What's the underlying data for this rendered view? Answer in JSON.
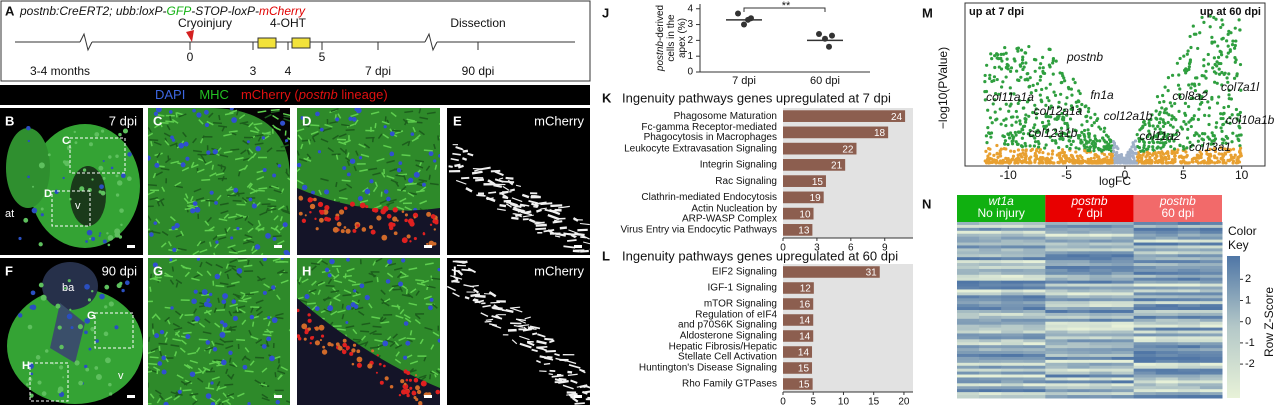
{
  "panel_a": {
    "letter": "A",
    "title": [
      "postnb:CreERT2; ubb:loxP-",
      "GFP",
      "-STOP-loxP-",
      "mCherry"
    ],
    "timeline": {
      "age": "3-4 months",
      "injury": "Cryoinjury",
      "treatment": "4-OHT",
      "end": "Dissection",
      "ticks": [
        "0",
        "3",
        "4",
        "5",
        "7 dpi",
        "90 dpi"
      ]
    }
  },
  "stain_legend": [
    "DAPI",
    "MHC",
    "mCherry (",
    "postnb",
    " lineage)"
  ],
  "micrographs": {
    "rows": [
      {
        "time": "7 dpi",
        "letters": [
          "B",
          "C",
          "D",
          "E"
        ],
        "channel": "mCherry",
        "regions": [
          "at",
          "v"
        ],
        "boxes": [
          "C",
          "D"
        ]
      },
      {
        "time": "90 dpi",
        "letters": [
          "F",
          "G",
          "H",
          "I"
        ],
        "channel": "mCherry",
        "regions": [
          "ba",
          "v"
        ],
        "boxes": [
          "G",
          "H"
        ]
      }
    ]
  },
  "panel_j": {
    "letter": "J",
    "ylabel": [
      [
        "postnb",
        "-derived"
      ],
      "cells in the",
      "apex (%)"
    ],
    "categories": [
      "7 dpi",
      "60 dpi"
    ],
    "points": [
      [
        3.7,
        3.3,
        3.0,
        3.4
      ],
      [
        2.4,
        1.6,
        2.1,
        2.3
      ]
    ],
    "means": [
      3.3,
      2.0
    ],
    "significance": "**",
    "ylim": [
      0,
      4.3
    ],
    "yticks": [
      0,
      1,
      2,
      3,
      4
    ]
  },
  "panel_k": {
    "letter": "K",
    "title": "Ingenuity pathways genes upregulated at 7 dpi",
    "categories": [
      [
        "Phagosome Maturation"
      ],
      [
        "Fc-gamma Receptor-mediated",
        "Phagocytosis in Macrophages"
      ],
      [
        "Leukocyte Extravasation Signaling"
      ],
      [
        "Integrin Signaling"
      ],
      [
        "Rac Signaling"
      ],
      [
        "Clathrin-mediated Endocytosis"
      ],
      [
        "Actin Nucleation by",
        "ARP-WASP Complex"
      ],
      [
        "Virus Entry via Endocytic Pathways"
      ]
    ],
    "values": [
      10.8,
      9.3,
      6.5,
      5.5,
      3.8,
      3.6,
      2.7,
      2.6
    ],
    "counts": [
      24,
      18,
      22,
      21,
      15,
      19,
      10,
      13
    ],
    "color": "#8c5e4f",
    "xlim": [
      0,
      11.5
    ],
    "xticks": [
      0,
      3,
      6,
      9
    ]
  },
  "panel_l": {
    "letter": "L",
    "title": "Ingenuity pathways genes upregulated at 60 dpi",
    "categories": [
      [
        "EIF2 Signaling"
      ],
      [
        "IGF-1 Signaling"
      ],
      [
        "mTOR Signaling"
      ],
      [
        "Regulation of eIF4",
        "and p70S6K Signaling"
      ],
      [
        "Aldosterone Signaling"
      ],
      [
        "Hepatic Fibrosis/Hepatic",
        "Stellate Cell Activation"
      ],
      [
        "Huntington's Disease Signaling"
      ],
      [
        "Rho Family GTPases"
      ]
    ],
    "values": [
      16,
      5.1,
      5,
      5,
      5,
      4.8,
      4.8,
      4.9
    ],
    "counts": [
      31,
      12,
      16,
      14,
      14,
      14,
      15,
      15
    ],
    "color": "#8c5e4f",
    "xlim": [
      0,
      21.5
    ],
    "xticks": [
      0,
      5,
      10,
      15,
      20
    ]
  },
  "panel_m": {
    "letter": "M",
    "left_label": "up at 7 dpi",
    "right_label": "up at 60 dpi",
    "xlabel": "logFC",
    "ylabel": "−log10(PValue)",
    "xlim": [
      -13.7,
      12
    ],
    "xticks": [
      -10,
      -5,
      0,
      5,
      10
    ],
    "genes": [
      "col11a1a",
      "postnb",
      "fn1a",
      "col12a1a",
      "col12a1b",
      "col12a1b",
      "col11a2",
      "col8a2",
      "col7a1l",
      "col10a1b",
      "col13a1"
    ]
  },
  "panel_n": {
    "letter": "N",
    "groups": [
      [
        "wt1a",
        "No injury"
      ],
      [
        "postnb",
        "7 dpi"
      ],
      [
        "postnb",
        "60 dpi"
      ]
    ],
    "group_colors": [
      "#10b010",
      "#e80000",
      "#f26a6a"
    ],
    "key_title": [
      "Color",
      "Key"
    ],
    "key_axis": "Row Z-Score",
    "key_lim": [
      -3.6,
      3.1
    ],
    "key_ticks": [
      2,
      1,
      0,
      -1,
      -2
    ]
  }
}
